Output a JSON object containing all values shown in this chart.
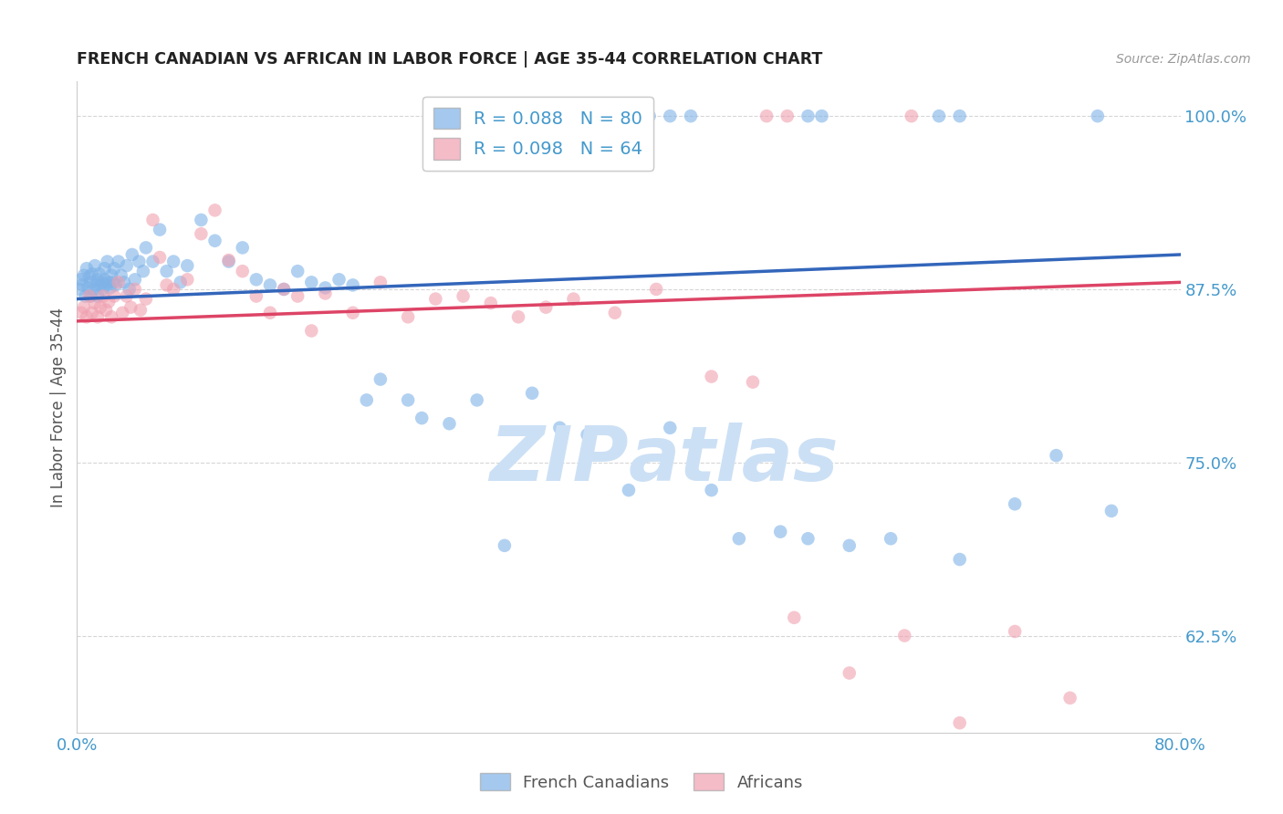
{
  "title": "FRENCH CANADIAN VS AFRICAN IN LABOR FORCE | AGE 35-44 CORRELATION CHART",
  "source": "Source: ZipAtlas.com",
  "ylabel": "In Labor Force | Age 35-44",
  "xlim": [
    0.0,
    0.8
  ],
  "ylim": [
    0.555,
    1.025
  ],
  "yticks": [
    0.625,
    0.75,
    0.875,
    1.0
  ],
  "ytick_labels": [
    "62.5%",
    "75.0%",
    "87.5%",
    "100.0%"
  ],
  "xticks": [
    0.0,
    0.2,
    0.4,
    0.6,
    0.8
  ],
  "xtick_labels": [
    "0.0%",
    "",
    "",
    "",
    "80.0%"
  ],
  "r_blue": 0.088,
  "n_blue": 80,
  "r_pink": 0.098,
  "n_pink": 64,
  "legend_label_blue": "French Canadians",
  "legend_label_pink": "Africans",
  "blue_scatter_x": [
    0.002,
    0.003,
    0.004,
    0.005,
    0.006,
    0.007,
    0.008,
    0.009,
    0.01,
    0.01,
    0.011,
    0.012,
    0.013,
    0.014,
    0.015,
    0.015,
    0.016,
    0.017,
    0.018,
    0.019,
    0.02,
    0.02,
    0.021,
    0.022,
    0.023,
    0.024,
    0.025,
    0.026,
    0.027,
    0.028,
    0.03,
    0.032,
    0.034,
    0.036,
    0.038,
    0.04,
    0.042,
    0.045,
    0.048,
    0.05,
    0.055,
    0.06,
    0.065,
    0.07,
    0.075,
    0.08,
    0.09,
    0.1,
    0.11,
    0.12,
    0.13,
    0.14,
    0.15,
    0.16,
    0.17,
    0.18,
    0.19,
    0.2,
    0.21,
    0.22,
    0.24,
    0.25,
    0.27,
    0.29,
    0.31,
    0.33,
    0.35,
    0.37,
    0.4,
    0.43,
    0.46,
    0.48,
    0.51,
    0.53,
    0.56,
    0.59,
    0.64,
    0.68,
    0.71,
    0.75
  ],
  "blue_scatter_y": [
    0.875,
    0.882,
    0.878,
    0.885,
    0.87,
    0.89,
    0.876,
    0.884,
    0.87,
    0.88,
    0.886,
    0.875,
    0.892,
    0.878,
    0.882,
    0.87,
    0.886,
    0.878,
    0.88,
    0.875,
    0.882,
    0.89,
    0.878,
    0.895,
    0.88,
    0.876,
    0.885,
    0.88,
    0.89,
    0.878,
    0.895,
    0.885,
    0.88,
    0.892,
    0.875,
    0.9,
    0.882,
    0.895,
    0.888,
    0.905,
    0.895,
    0.918,
    0.888,
    0.895,
    0.88,
    0.892,
    0.925,
    0.91,
    0.895,
    0.905,
    0.882,
    0.878,
    0.875,
    0.888,
    0.88,
    0.876,
    0.882,
    0.878,
    0.795,
    0.81,
    0.795,
    0.782,
    0.778,
    0.795,
    0.69,
    0.8,
    0.775,
    0.77,
    0.73,
    0.775,
    0.73,
    0.695,
    0.7,
    0.695,
    0.69,
    0.695,
    0.68,
    0.72,
    0.755,
    0.715
  ],
  "pink_scatter_x": [
    0.003,
    0.005,
    0.007,
    0.009,
    0.011,
    0.013,
    0.015,
    0.017,
    0.019,
    0.021,
    0.023,
    0.025,
    0.027,
    0.03,
    0.033,
    0.036,
    0.039,
    0.042,
    0.046,
    0.05,
    0.055,
    0.06,
    0.065,
    0.07,
    0.08,
    0.09,
    0.1,
    0.11,
    0.12,
    0.13,
    0.14,
    0.15,
    0.16,
    0.17,
    0.18,
    0.2,
    0.22,
    0.24,
    0.26,
    0.28,
    0.3,
    0.32,
    0.34,
    0.36,
    0.39,
    0.42,
    0.46,
    0.49,
    0.52,
    0.56,
    0.6,
    0.64,
    0.68,
    0.72,
    0.76
  ],
  "pink_scatter_y": [
    0.858,
    0.862,
    0.855,
    0.87,
    0.858,
    0.865,
    0.855,
    0.862,
    0.87,
    0.86,
    0.866,
    0.855,
    0.87,
    0.88,
    0.858,
    0.87,
    0.862,
    0.875,
    0.86,
    0.868,
    0.925,
    0.898,
    0.878,
    0.875,
    0.882,
    0.915,
    0.932,
    0.896,
    0.888,
    0.87,
    0.858,
    0.875,
    0.87,
    0.845,
    0.872,
    0.858,
    0.88,
    0.855,
    0.868,
    0.87,
    0.865,
    0.855,
    0.862,
    0.868,
    0.858,
    0.875,
    0.812,
    0.808,
    0.638,
    0.598,
    0.625,
    0.562,
    0.628,
    0.58,
    0.55
  ],
  "top_blue_x": [
    0.355,
    0.37,
    0.385,
    0.4,
    0.415,
    0.43,
    0.445,
    0.53,
    0.54,
    0.625,
    0.64,
    0.74
  ],
  "top_blue_y": [
    1.0,
    1.0,
    1.0,
    1.0,
    1.0,
    1.0,
    1.0,
    1.0,
    1.0,
    1.0,
    1.0,
    1.0
  ],
  "top_pink_x": [
    0.3,
    0.315,
    0.332,
    0.5,
    0.515,
    0.605
  ],
  "top_pink_y": [
    1.0,
    1.0,
    1.0,
    1.0,
    1.0,
    1.0
  ],
  "blue_line_x": [
    0.0,
    0.8
  ],
  "blue_line_y": [
    0.868,
    0.9
  ],
  "pink_line_x": [
    0.0,
    0.8
  ],
  "pink_line_y": [
    0.852,
    0.88
  ],
  "blue_color": "#7fb3e8",
  "pink_color": "#f0a0b0",
  "blue_line_color": "#3366bb",
  "pink_line_color": "#dd4466",
  "bg_color": "#ffffff",
  "grid_color": "#cccccc",
  "tick_label_color": "#4499cc",
  "title_color": "#222222",
  "watermark_color": "#cce0f5"
}
